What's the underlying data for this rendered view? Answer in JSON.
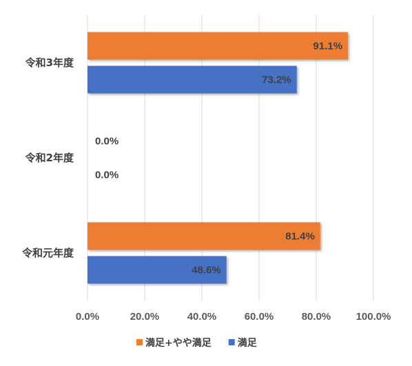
{
  "chart_data": {
    "type": "bar",
    "orientation": "horizontal",
    "categories": [
      "令和3年度",
      "令和2年度",
      "令和元年度"
    ],
    "series": [
      {
        "name": "満足+やや満足",
        "color": "#ED7D31",
        "values": [
          91.1,
          0.0,
          81.4
        ],
        "labels": [
          "91.1%",
          "0.0%",
          "81.4%"
        ]
      },
      {
        "name": "満足",
        "color": "#4472C4",
        "values": [
          73.2,
          0.0,
          48.6
        ],
        "labels": [
          "73.2%",
          "0.0%",
          "48.6%"
        ]
      }
    ],
    "x_ticks": [
      "0.0%",
      "20.0%",
      "40.0%",
      "60.0%",
      "80.0%",
      "100.0%"
    ],
    "xlim": [
      0,
      100
    ],
    "grid": true,
    "legend_position": "bottom"
  }
}
